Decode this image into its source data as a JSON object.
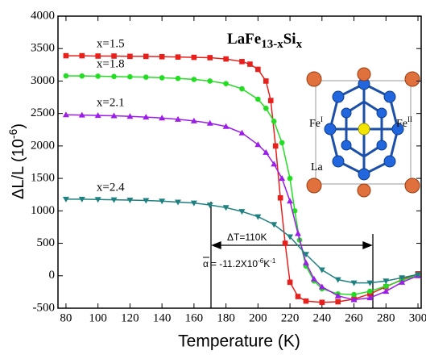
{
  "chart_data": {
    "type": "line",
    "title": {
      "main": "LaFe",
      "sub": "13-x",
      "main2": "Si",
      "sub2": "x"
    },
    "x_label": "Temperature (K)",
    "y_label": {
      "text": "ΔL/L (10",
      "sup": "-6",
      "end": ")"
    },
    "xlim": [
      75,
      302
    ],
    "xticks": [
      80,
      100,
      120,
      140,
      160,
      180,
      200,
      220,
      240,
      260,
      280,
      300
    ],
    "ylim": [
      -500,
      4000
    ],
    "yticks": [
      -500,
      0,
      500,
      1000,
      1500,
      2000,
      2500,
      3000,
      3500,
      4000
    ],
    "annotations": {
      "delta_t": "ΔT=110K",
      "alpha": {
        "symbol": "α",
        "text": "= -11.2X10",
        "sup": "-6",
        "unit": "K",
        "sup2": "-1"
      },
      "inset": {
        "fe1": "Fe",
        "fe1_sup": "I",
        "fe2": "Fe",
        "fe2_sup": "II",
        "la": "La"
      }
    },
    "series": [
      {
        "name": "x=1.5",
        "color": "#e8201c",
        "marker": "square",
        "x": [
          80,
          90,
          100,
          110,
          120,
          130,
          140,
          150,
          160,
          170,
          180,
          190,
          195,
          200,
          205,
          208,
          211,
          214,
          217,
          220,
          225,
          230,
          240,
          250,
          260,
          270,
          280,
          290,
          300
        ],
        "values": [
          3390,
          3390,
          3385,
          3385,
          3380,
          3380,
          3375,
          3370,
          3365,
          3360,
          3340,
          3300,
          3260,
          3180,
          3000,
          2700,
          2000,
          1200,
          500,
          -100,
          -320,
          -390,
          -410,
          -400,
          -360,
          -280,
          -170,
          -60,
          30
        ]
      },
      {
        "name": "x=1.8",
        "color": "#22dd22",
        "marker": "circle",
        "x": [
          80,
          90,
          100,
          110,
          120,
          130,
          140,
          150,
          160,
          170,
          180,
          190,
          200,
          205,
          210,
          215,
          220,
          223,
          226,
          230,
          235,
          240,
          250,
          260,
          270,
          280,
          290,
          300
        ],
        "values": [
          3080,
          3078,
          3075,
          3070,
          3065,
          3060,
          3050,
          3040,
          3025,
          3000,
          2960,
          2880,
          2720,
          2580,
          2380,
          2050,
          1500,
          1000,
          550,
          150,
          -80,
          -200,
          -280,
          -290,
          -240,
          -160,
          -70,
          10
        ]
      },
      {
        "name": "x=2.1",
        "color": "#9b1de8",
        "marker": "triangle",
        "x": [
          80,
          90,
          100,
          110,
          120,
          130,
          140,
          150,
          160,
          170,
          180,
          190,
          200,
          205,
          210,
          215,
          220,
          225,
          230,
          235,
          240,
          250,
          260,
          270,
          280,
          290,
          300
        ],
        "values": [
          2480,
          2475,
          2470,
          2465,
          2455,
          2445,
          2430,
          2410,
          2385,
          2350,
          2300,
          2200,
          2020,
          1900,
          1720,
          1500,
          1150,
          650,
          200,
          -50,
          -170,
          -310,
          -370,
          -340,
          -240,
          -100,
          0
        ]
      },
      {
        "name": "x=2.4",
        "color": "#1f8080",
        "marker": "down",
        "x": [
          80,
          90,
          100,
          110,
          120,
          130,
          140,
          150,
          160,
          170,
          180,
          190,
          200,
          210,
          220,
          230,
          240,
          250,
          260,
          270,
          280,
          290,
          300
        ],
        "values": [
          1180,
          1180,
          1175,
          1170,
          1165,
          1160,
          1150,
          1135,
          1120,
          1090,
          1050,
          990,
          910,
          790,
          600,
          330,
          90,
          -60,
          -110,
          -110,
          -80,
          -30,
          20
        ]
      }
    ]
  }
}
